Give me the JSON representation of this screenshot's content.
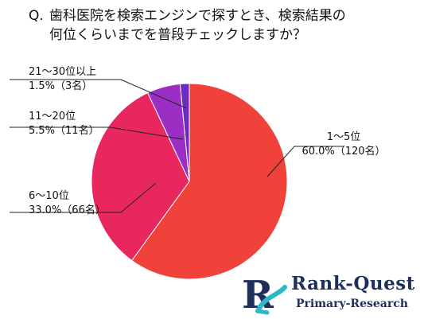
{
  "question": {
    "prefix": "Q.",
    "line1": "歯科医院を検索エンジンで探すとき、検索結果の",
    "line2": "何位くらいまでを普段チェックしますか？"
  },
  "chart_data": {
    "type": "pie",
    "title": "Q. 歯科医院を検索エンジンで探すとき、検索結果の何位くらいまでを普段チェックしますか？",
    "slices": [
      {
        "label": "1～5位",
        "percent": 60.0,
        "count_text": "60.0%（120名）",
        "value": 120,
        "color": "#f0413a"
      },
      {
        "label": "6～10位",
        "percent": 33.0,
        "count_text": "33.0%（66名）",
        "value": 66,
        "color": "#e8275f"
      },
      {
        "label": "11～20位",
        "percent": 5.5,
        "count_text": "5.5%（11名）",
        "value": 11,
        "color": "#9b2fc4"
      },
      {
        "label": "21～30位以上",
        "percent": 1.5,
        "count_text": "1.5%（3名）",
        "value": 3,
        "color": "#6a2cc0"
      }
    ],
    "start": "12 o'clock",
    "direction": "clockwise"
  },
  "logo": {
    "brand_text": "Rank-Quest",
    "sub_text": "Primary-Research",
    "mark_letter": "R",
    "colors": {
      "navy": "#1f2f5c",
      "teal": "#2bb8c8"
    }
  }
}
